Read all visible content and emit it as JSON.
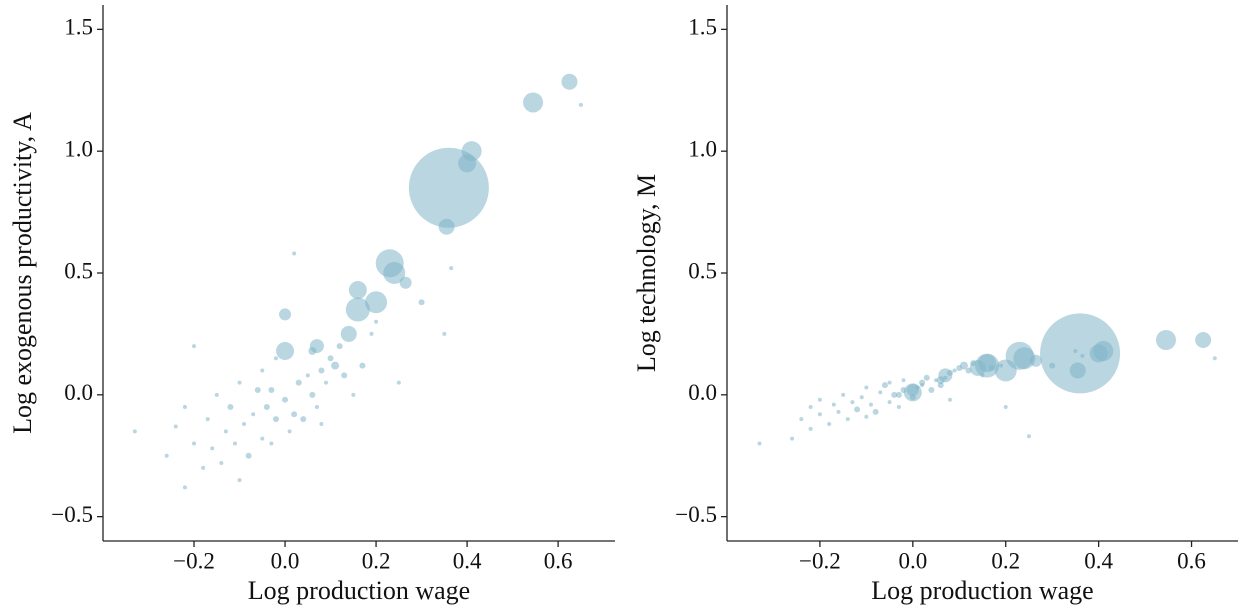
{
  "chart_data": [
    {
      "type": "scatter",
      "xlabel": "Log production wage",
      "ylabel": "Log exogenous productivity, A",
      "color": "#7fb5c8",
      "xlim": [
        -0.4,
        0.725
      ],
      "ylim": [
        -0.6,
        1.6
      ],
      "xticks": [
        {
          "value": -0.2,
          "label": "−0.2"
        },
        {
          "value": 0,
          "label": "0.0"
        },
        0.2,
        0.4,
        0.6
      ],
      "yticks": [
        {
          "value": -0.5,
          "label": "−0.5"
        },
        {
          "value": 0,
          "label": "0.0"
        },
        0.5,
        {
          "value": 1,
          "label": "1.0"
        },
        1.5
      ],
      "x": [
        0.36,
        0.545,
        0.625,
        0.41,
        0.4,
        0.355,
        0.23,
        0.24,
        0.2,
        0.16,
        0.16,
        0.0,
        0.0,
        0.14,
        0.07,
        0.265,
        0.65,
        0.365,
        -0.33,
        -0.26,
        -0.24,
        -0.22,
        -0.22,
        -0.2,
        -0.2,
        -0.18,
        -0.17,
        -0.16,
        -0.15,
        -0.14,
        -0.13,
        -0.12,
        -0.11,
        -0.1,
        -0.1,
        -0.09,
        -0.08,
        -0.07,
        -0.06,
        -0.05,
        -0.05,
        -0.04,
        -0.03,
        -0.02,
        -0.02,
        0.0,
        0.01,
        0.02,
        0.03,
        0.04,
        0.05,
        0.06,
        0.07,
        0.08,
        0.09,
        0.1,
        0.11,
        0.12,
        0.13,
        0.15,
        0.17,
        0.19,
        0.2,
        0.02,
        0.08,
        0.25,
        0.3,
        0.35,
        -0.03,
        0.06
      ],
      "y": [
        0.85,
        1.2,
        1.285,
        1.0,
        0.95,
        0.69,
        0.54,
        0.5,
        0.38,
        0.35,
        0.43,
        0.18,
        0.33,
        0.25,
        0.2,
        0.46,
        1.19,
        0.52,
        -0.15,
        -0.25,
        -0.13,
        -0.38,
        -0.05,
        -0.2,
        0.2,
        -0.3,
        -0.1,
        -0.22,
        0.0,
        -0.28,
        -0.15,
        -0.05,
        -0.2,
        -0.35,
        0.05,
        -0.12,
        -0.25,
        -0.08,
        0.02,
        -0.18,
        0.1,
        -0.05,
        -0.2,
        -0.1,
        0.15,
        -0.02,
        -0.15,
        -0.08,
        0.05,
        -0.1,
        0.08,
        0.0,
        -0.05,
        0.1,
        0.05,
        0.15,
        0.12,
        0.2,
        0.08,
        0.0,
        0.12,
        0.25,
        0.3,
        0.58,
        -0.12,
        0.05,
        0.38,
        0.25,
        0.02,
        0.18
      ],
      "size": [
        1600,
        100,
        64,
        100,
        81,
        64,
        196,
        121,
        121,
        144,
        81,
        81,
        36,
        64,
        49,
        36,
        4,
        4,
        4,
        4,
        4,
        4,
        4,
        4,
        4,
        4,
        4,
        4,
        4,
        4,
        4,
        9,
        4,
        4,
        4,
        4,
        9,
        4,
        9,
        4,
        4,
        9,
        4,
        9,
        4,
        9,
        4,
        9,
        9,
        9,
        4,
        9,
        4,
        9,
        4,
        9,
        16,
        9,
        9,
        4,
        9,
        4,
        4,
        4,
        4,
        4,
        9,
        4,
        9,
        16
      ]
    },
    {
      "type": "scatter",
      "xlabel": "Log production wage",
      "ylabel": "Log technology, M",
      "color": "#7fb5c8",
      "xlim": [
        -0.4,
        0.7
      ],
      "ylim": [
        -0.6,
        1.6
      ],
      "xticks": [
        {
          "value": -0.2,
          "label": "−0.2"
        },
        {
          "value": 0,
          "label": "0.0"
        },
        0.2,
        0.4,
        0.6
      ],
      "yticks": [
        {
          "value": -0.5,
          "label": "−0.5"
        },
        {
          "value": 0,
          "label": "0.0"
        },
        0.5,
        {
          "value": 1,
          "label": "1.0"
        },
        1.5
      ],
      "x": [
        0.36,
        0.545,
        0.625,
        0.41,
        0.4,
        0.355,
        0.23,
        0.24,
        0.2,
        0.16,
        0.16,
        0.0,
        0.0,
        0.14,
        0.07,
        0.265,
        0.65,
        0.365,
        -0.33,
        -0.26,
        -0.24,
        -0.22,
        -0.22,
        -0.2,
        -0.2,
        -0.18,
        -0.17,
        -0.16,
        -0.15,
        -0.14,
        -0.13,
        -0.12,
        -0.11,
        -0.1,
        -0.1,
        -0.09,
        -0.08,
        -0.07,
        -0.06,
        -0.05,
        -0.05,
        -0.04,
        -0.03,
        -0.02,
        -0.02,
        0.0,
        0.01,
        0.02,
        0.03,
        0.04,
        0.05,
        0.06,
        0.07,
        0.08,
        0.09,
        0.1,
        0.11,
        0.12,
        0.13,
        0.15,
        0.17,
        0.19,
        0.2,
        0.02,
        0.08,
        0.25,
        0.3,
        0.35,
        -0.03,
        0.06
      ],
      "y": [
        0.17,
        0.225,
        0.225,
        0.18,
        0.17,
        0.1,
        0.16,
        0.15,
        0.1,
        0.12,
        0.13,
        0.01,
        0.02,
        0.11,
        0.08,
        0.14,
        0.15,
        0.16,
        -0.2,
        -0.18,
        -0.1,
        -0.14,
        -0.05,
        -0.08,
        -0.02,
        -0.12,
        -0.04,
        -0.07,
        0.0,
        -0.1,
        -0.03,
        -0.06,
        -0.01,
        -0.09,
        0.03,
        -0.04,
        -0.07,
        0.01,
        0.04,
        -0.03,
        0.05,
        0.0,
        -0.05,
        0.02,
        0.06,
        -0.01,
        0.03,
        0.05,
        0.07,
        0.02,
        0.06,
        0.04,
        0.07,
        0.09,
        0.1,
        0.11,
        0.12,
        0.1,
        0.13,
        0.08,
        0.11,
        0.12,
        -0.05,
        0.04,
        -0.02,
        -0.17,
        0.12,
        0.18,
        0.0,
        0.06
      ],
      "size": [
        1600,
        100,
        64,
        100,
        81,
        64,
        196,
        121,
        121,
        144,
        81,
        81,
        36,
        64,
        49,
        36,
        4,
        4,
        4,
        4,
        4,
        4,
        4,
        4,
        4,
        4,
        4,
        4,
        4,
        4,
        4,
        9,
        4,
        4,
        4,
        4,
        9,
        4,
        9,
        4,
        4,
        9,
        4,
        9,
        4,
        9,
        4,
        9,
        9,
        9,
        4,
        9,
        4,
        9,
        4,
        9,
        16,
        9,
        9,
        4,
        9,
        4,
        4,
        4,
        4,
        4,
        9,
        4,
        9,
        16
      ]
    }
  ]
}
